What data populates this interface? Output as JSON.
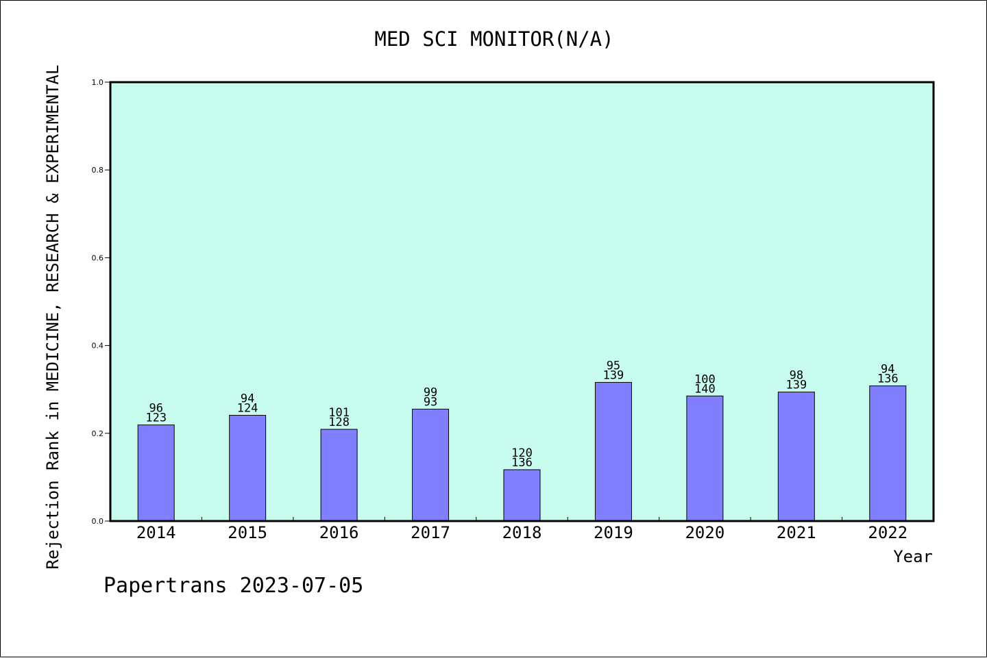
{
  "chart_data": {
    "type": "bar",
    "title": "MED SCI MONITOR(N/A)",
    "xlabel": "Year",
    "ylabel": "Rejection Rank in MEDICINE, RESEARCH & EXPERIMENTAL",
    "categories": [
      "2014",
      "2015",
      "2016",
      "2017",
      "2018",
      "2019",
      "2020",
      "2021",
      "2022"
    ],
    "values": [
      0.219,
      0.241,
      0.209,
      0.255,
      0.117,
      0.316,
      0.285,
      0.294,
      0.308
    ],
    "labels_top": [
      "96",
      "94",
      "101",
      "99",
      "120",
      "95",
      "100",
      "98",
      "94"
    ],
    "labels_bottom": [
      "123",
      "124",
      "128",
      "93",
      "136",
      "139",
      "140",
      "139",
      "136"
    ],
    "ylim": [
      0,
      1.0
    ],
    "yticks": [
      "0.0",
      "0.2",
      "0.4",
      "0.6",
      "0.8",
      "1.0"
    ],
    "grid": false,
    "colors": {
      "plot_bg": "#c8fcee",
      "bar": "#8080ff",
      "axis": "#000000"
    }
  },
  "footer": "Papertrans 2023-07-05"
}
